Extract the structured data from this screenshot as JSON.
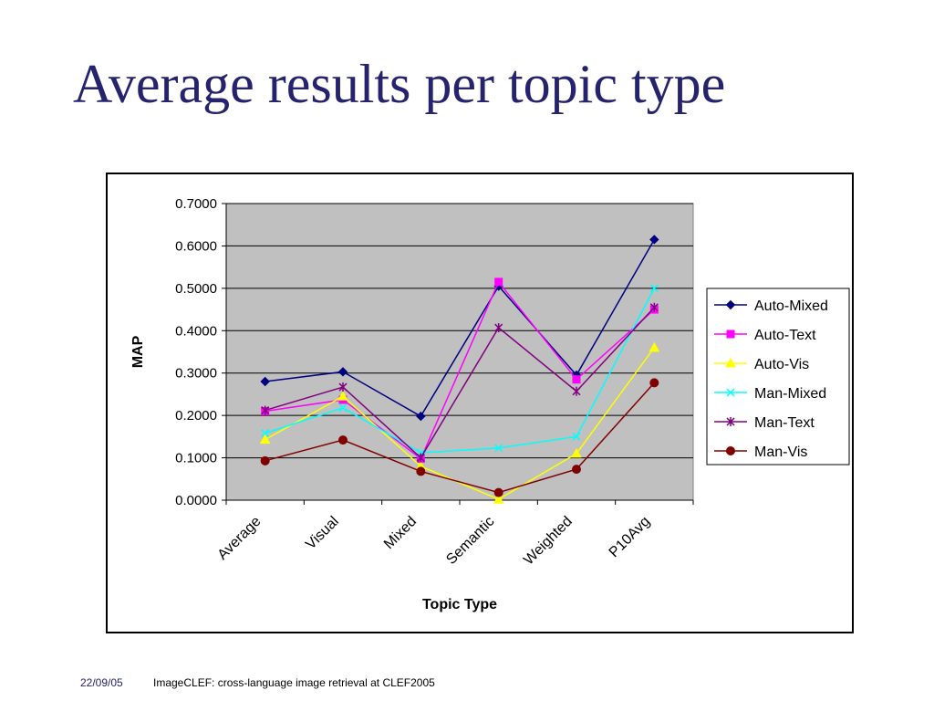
{
  "slide": {
    "title": "Average results per topic type",
    "footer_date": "22/09/05",
    "footer_text": "ImageCLEF: cross-language image retrieval at CLEF2005"
  },
  "chart_data": {
    "type": "line",
    "title": "",
    "xlabel": "Topic Type",
    "ylabel": "MAP",
    "ylim": [
      0,
      0.7
    ],
    "yticks": [
      "0.0000",
      "0.1000",
      "0.2000",
      "0.3000",
      "0.4000",
      "0.5000",
      "0.6000",
      "0.7000"
    ],
    "categories": [
      "Average",
      "Visual",
      "Mixed",
      "Semantic",
      "Weighted",
      "P10Avg"
    ],
    "grid": true,
    "legend_position": "right",
    "plot_background": "#c0c0c0",
    "series": [
      {
        "name": "Auto-Mixed",
        "color": "#000080",
        "marker": "diamond",
        "values": [
          0.28,
          0.303,
          0.198,
          0.505,
          0.295,
          0.615
        ]
      },
      {
        "name": "Auto-Text",
        "color": "#ff00ff",
        "marker": "square",
        "values": [
          0.21,
          0.237,
          0.098,
          0.515,
          0.285,
          0.45
        ]
      },
      {
        "name": "Auto-Vis",
        "color": "#ffff00",
        "marker": "triangle",
        "values": [
          0.143,
          0.245,
          0.08,
          0.002,
          0.11,
          0.36
        ]
      },
      {
        "name": "Man-Mixed",
        "color": "#00ffff",
        "marker": "x",
        "values": [
          0.158,
          0.218,
          0.112,
          0.123,
          0.15,
          0.5
        ]
      },
      {
        "name": "Man-Text",
        "color": "#800080",
        "marker": "star",
        "values": [
          0.212,
          0.267,
          0.1,
          0.407,
          0.257,
          0.455
        ]
      },
      {
        "name": "Man-Vis",
        "color": "#800000",
        "marker": "circle",
        "values": [
          0.093,
          0.142,
          0.068,
          0.018,
          0.073,
          0.277
        ]
      }
    ]
  }
}
